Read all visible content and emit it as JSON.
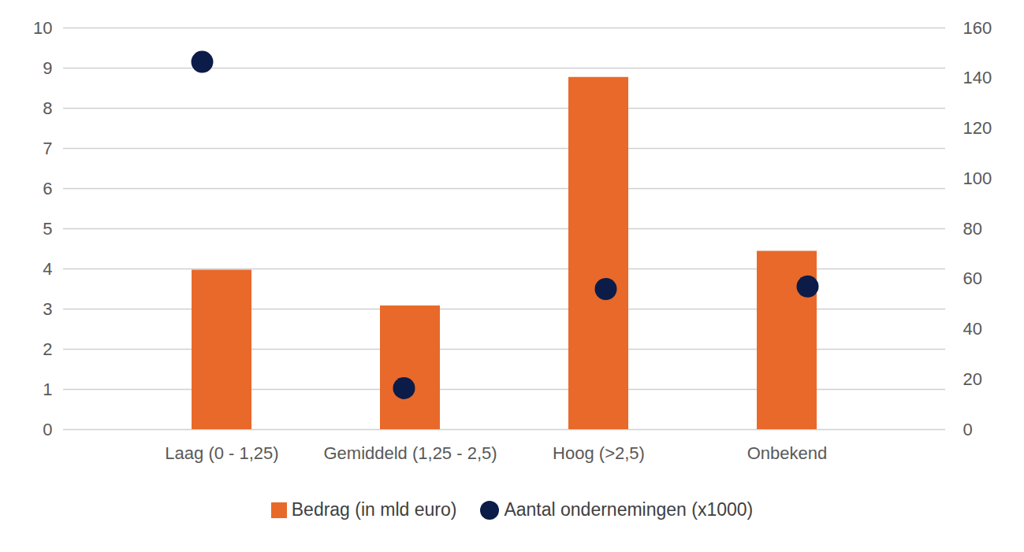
{
  "chart_data": {
    "type": "bar",
    "categories": [
      "Laag (0 - 1,25)",
      "Gemiddeld (1,25 - 2,5)",
      "Hoog (>2,5)",
      "Onbekend"
    ],
    "series": [
      {
        "name": "Bedrag (in mld euro)",
        "type": "bar",
        "color": "#e8692a",
        "values": [
          3.97,
          3.08,
          8.77,
          4.44
        ]
      },
      {
        "name": "Aantal ondernemingen (x1000)",
        "type": "scatter",
        "marker": "circle",
        "axis": "y2",
        "color": "#0b1c48",
        "values": [
          146.5,
          16.5,
          56,
          57
        ]
      }
    ],
    "ylim": [
      0,
      10
    ],
    "yticks": [
      0,
      1,
      2,
      3,
      4,
      5,
      6,
      7,
      8,
      9,
      10
    ],
    "y2lim": [
      0,
      160
    ],
    "y2ticks": [
      0,
      20,
      40,
      60,
      80,
      100,
      120,
      140,
      160
    ],
    "grid": true,
    "legend": "bottom"
  }
}
